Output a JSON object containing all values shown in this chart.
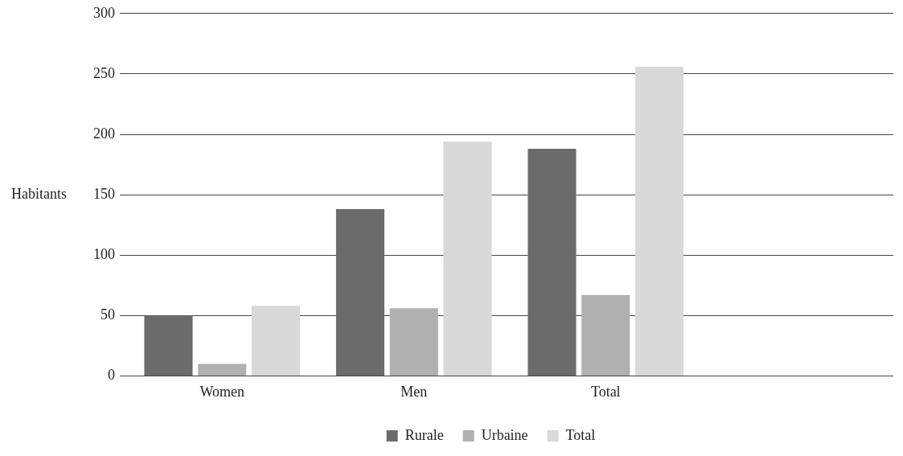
{
  "chart_data": {
    "type": "bar",
    "ylabel": "Habitants",
    "categories": [
      "Women",
      "Men",
      "Total",
      null
    ],
    "series": [
      {
        "name": "Rurale",
        "color": "#6b6b6b",
        "values": [
          50,
          138,
          188,
          null
        ]
      },
      {
        "name": "Urbaine",
        "color": "#b0b0b0",
        "values": [
          10,
          56,
          67,
          null
        ]
      },
      {
        "name": "Total",
        "color": "#d9d9d9",
        "values": [
          58,
          194,
          256,
          null
        ]
      }
    ],
    "ylim": [
      0,
      300
    ],
    "yticks": [
      0,
      50,
      100,
      150,
      200,
      250,
      300
    ],
    "grid": "y",
    "legend": "bottom"
  }
}
